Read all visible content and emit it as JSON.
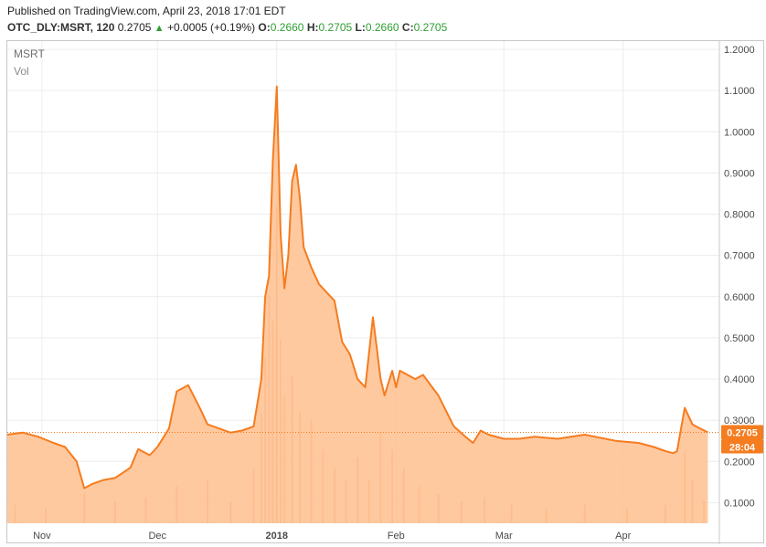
{
  "header": {
    "published": "Published on TradingView.com, April 23, 2018 17:01 EDT",
    "symbol": "OTC_DLY:MSRT, 120",
    "last": "0.2705",
    "change": "+0.0005 (+0.19%)",
    "o_label": "O:",
    "o_value": "0.2660",
    "h_label": "H:",
    "h_value": "0.2705",
    "l_label": "L:",
    "l_value": "0.2660",
    "c_label": "C:",
    "c_value": "0.2705",
    "up_arrow_icon": "triangle-up-icon"
  },
  "legend": {
    "symbol": "MSRT",
    "volume": "Vol"
  },
  "price_tag": {
    "value": "0.2705",
    "countdown": "28:04"
  },
  "colors": {
    "line": "#f57c1f",
    "area": "#ffbf8f",
    "volume": "#e9a070",
    "tag": "#f57c1f",
    "change_up": "#2e9e32"
  },
  "chart_data": {
    "type": "area",
    "ylim": [
      0.05,
      1.22
    ],
    "y_ticks": [
      {
        "value": 0.1,
        "label": "0.1000"
      },
      {
        "value": 0.2,
        "label": "0.2000"
      },
      {
        "value": 0.3,
        "label": "0.3000"
      },
      {
        "value": 0.4,
        "label": "0.4000"
      },
      {
        "value": 0.5,
        "label": "0.5000"
      },
      {
        "value": 0.6,
        "label": "0.6000"
      },
      {
        "value": 0.7,
        "label": "0.7000"
      },
      {
        "value": 0.8,
        "label": "0.8000"
      },
      {
        "value": 0.9,
        "label": "0.9000"
      },
      {
        "value": 1.0,
        "label": "1.0000"
      },
      {
        "value": 1.1,
        "label": "1.1000"
      },
      {
        "value": 1.2,
        "label": "1.2000"
      }
    ],
    "x_ticks": [
      {
        "date": "2017-11-01",
        "label": "Nov",
        "bold": false
      },
      {
        "date": "2017-12-01",
        "label": "Dec",
        "bold": false
      },
      {
        "date": "2018-01-01",
        "label": "2018",
        "bold": true
      },
      {
        "date": "2018-02-01",
        "label": "Feb",
        "bold": false
      },
      {
        "date": "2018-03-01",
        "label": "Mar",
        "bold": false
      },
      {
        "date": "2018-04-01",
        "label": "Apr",
        "bold": false
      }
    ],
    "xlim": [
      "2017-10-23",
      "2018-04-26"
    ],
    "last_price": 0.2705,
    "series": [
      {
        "x": [
          "2017-10-23",
          "2017-10-27",
          "2017-10-31",
          "2017-11-04",
          "2017-11-07",
          "2017-11-10",
          "2017-11-12",
          "2017-11-14",
          "2017-11-17",
          "2017-11-20",
          "2017-11-24",
          "2017-11-26",
          "2017-11-29",
          "2017-12-01",
          "2017-12-04",
          "2017-12-06",
          "2017-12-09",
          "2017-12-12",
          "2017-12-14",
          "2017-12-17",
          "2017-12-20",
          "2017-12-23",
          "2017-12-26",
          "2017-12-28",
          "2017-12-29",
          "2017-12-30",
          "2017-12-31",
          "2018-01-01",
          "2018-01-02",
          "2018-01-03",
          "2018-01-04",
          "2018-01-05",
          "2018-01-06",
          "2018-01-07",
          "2018-01-08",
          "2018-01-10",
          "2018-01-12",
          "2018-01-14",
          "2018-01-16",
          "2018-01-18",
          "2018-01-20",
          "2018-01-22",
          "2018-01-24",
          "2018-01-26",
          "2018-01-28",
          "2018-01-29",
          "2018-01-31",
          "2018-02-01",
          "2018-02-02",
          "2018-02-04",
          "2018-02-06",
          "2018-02-08",
          "2018-02-12",
          "2018-02-16",
          "2018-02-19",
          "2018-02-21",
          "2018-02-23",
          "2018-02-25",
          "2018-03-01",
          "2018-03-05",
          "2018-03-09",
          "2018-03-15",
          "2018-03-22",
          "2018-03-30",
          "2018-04-05",
          "2018-04-09",
          "2018-04-12",
          "2018-04-14",
          "2018-04-15",
          "2018-04-17",
          "2018-04-19",
          "2018-04-21",
          "2018-04-23"
        ],
        "y": [
          0.265,
          0.27,
          0.26,
          0.245,
          0.235,
          0.2,
          0.135,
          0.145,
          0.155,
          0.16,
          0.185,
          0.23,
          0.215,
          0.235,
          0.28,
          0.37,
          0.385,
          0.33,
          0.29,
          0.28,
          0.27,
          0.275,
          0.285,
          0.4,
          0.6,
          0.65,
          0.93,
          1.11,
          0.75,
          0.62,
          0.7,
          0.88,
          0.92,
          0.84,
          0.72,
          0.67,
          0.63,
          0.61,
          0.59,
          0.49,
          0.46,
          0.4,
          0.38,
          0.55,
          0.4,
          0.36,
          0.42,
          0.38,
          0.42,
          0.41,
          0.4,
          0.41,
          0.36,
          0.285,
          0.26,
          0.245,
          0.275,
          0.265,
          0.255,
          0.255,
          0.26,
          0.255,
          0.265,
          0.25,
          0.245,
          0.235,
          0.225,
          0.22,
          0.225,
          0.33,
          0.29,
          0.28,
          0.2705
        ]
      }
    ],
    "volume": {
      "x": [
        "2017-10-25",
        "2017-11-02",
        "2017-11-12",
        "2017-11-20",
        "2017-11-28",
        "2017-12-06",
        "2017-12-14",
        "2017-12-20",
        "2017-12-26",
        "2017-12-28",
        "2017-12-29",
        "2017-12-30",
        "2017-12-31",
        "2018-01-01",
        "2018-01-02",
        "2018-01-03",
        "2018-01-05",
        "2018-01-07",
        "2018-01-10",
        "2018-01-13",
        "2018-01-16",
        "2018-01-19",
        "2018-01-22",
        "2018-01-25",
        "2018-01-28",
        "2018-01-31",
        "2018-02-03",
        "2018-02-07",
        "2018-02-12",
        "2018-02-18",
        "2018-02-24",
        "2018-03-03",
        "2018-03-12",
        "2018-03-22",
        "2018-04-02",
        "2018-04-12",
        "2018-04-17",
        "2018-04-19",
        "2018-04-22"
      ],
      "relative": [
        0.05,
        0.04,
        0.08,
        0.06,
        0.07,
        0.1,
        0.12,
        0.06,
        0.15,
        0.3,
        0.45,
        0.62,
        0.55,
        0.86,
        0.5,
        0.35,
        0.4,
        0.3,
        0.28,
        0.2,
        0.15,
        0.12,
        0.18,
        0.12,
        0.25,
        0.2,
        0.15,
        0.1,
        0.08,
        0.06,
        0.07,
        0.05,
        0.04,
        0.05,
        0.04,
        0.05,
        0.2,
        0.12,
        0.06
      ]
    }
  }
}
